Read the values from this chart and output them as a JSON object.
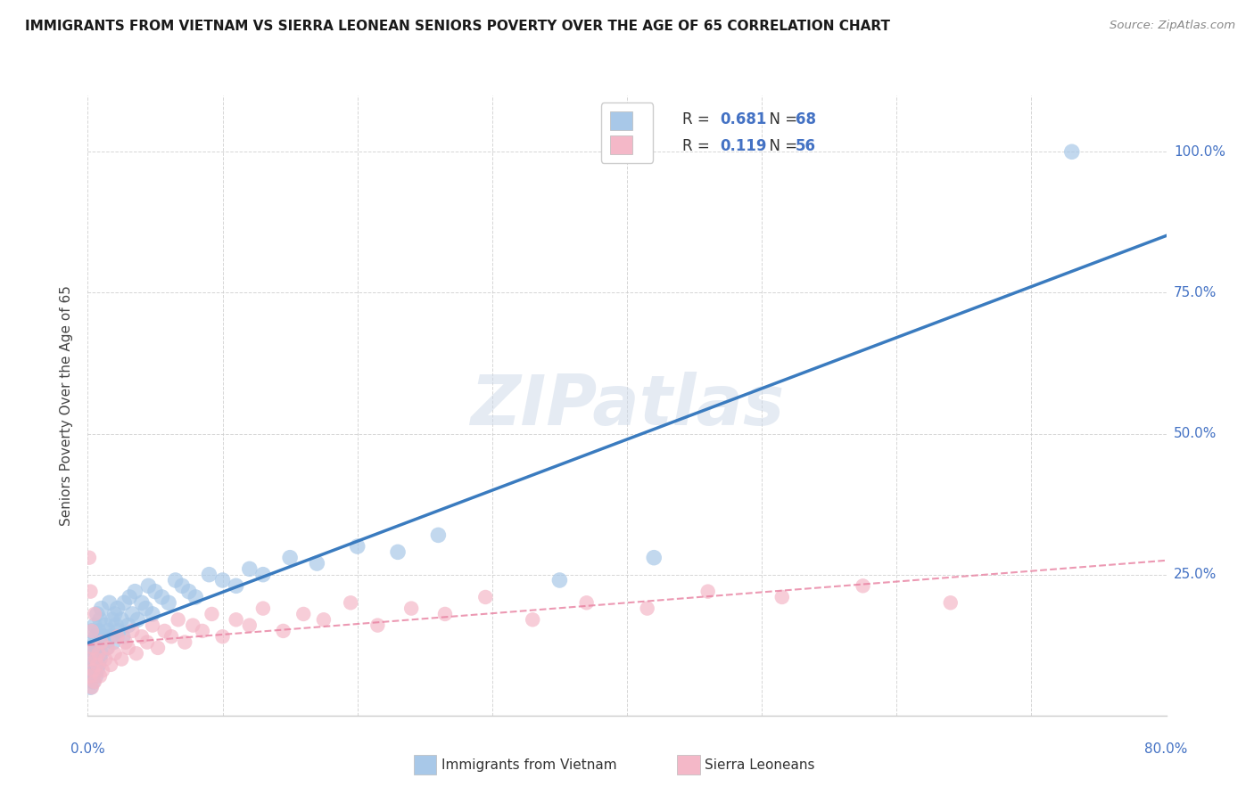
{
  "title": "IMMIGRANTS FROM VIETNAM VS SIERRA LEONEAN SENIORS POVERTY OVER THE AGE OF 65 CORRELATION CHART",
  "source": "Source: ZipAtlas.com",
  "ylabel": "Seniors Poverty Over the Age of 65",
  "watermark": "ZIPatlas",
  "vietnam_R": "0.681",
  "vietnam_N": "68",
  "sierra_R": "0.119",
  "sierra_N": "56",
  "vietnam_color": "#a8c8e8",
  "sierra_color": "#f4b8c8",
  "vietnam_line_color": "#3a7bbf",
  "sierra_line_color": "#e880a0",
  "label_color": "#4472c4",
  "background_color": "#ffffff",
  "grid_color": "#cccccc",
  "xlim": [
    0.0,
    0.8
  ],
  "ylim": [
    0.0,
    1.1
  ],
  "vietnam_scatter_x": [
    0.001,
    0.002,
    0.002,
    0.003,
    0.003,
    0.003,
    0.004,
    0.004,
    0.004,
    0.005,
    0.005,
    0.005,
    0.006,
    0.006,
    0.007,
    0.007,
    0.007,
    0.008,
    0.008,
    0.009,
    0.009,
    0.01,
    0.01,
    0.011,
    0.012,
    0.013,
    0.014,
    0.015,
    0.016,
    0.017,
    0.018,
    0.019,
    0.02,
    0.021,
    0.022,
    0.023,
    0.025,
    0.026,
    0.027,
    0.03,
    0.031,
    0.033,
    0.035,
    0.037,
    0.04,
    0.043,
    0.045,
    0.048,
    0.05,
    0.055,
    0.06,
    0.065,
    0.07,
    0.075,
    0.08,
    0.09,
    0.1,
    0.11,
    0.12,
    0.13,
    0.15,
    0.17,
    0.2,
    0.23,
    0.26,
    0.35,
    0.42,
    0.73
  ],
  "vietnam_scatter_y": [
    0.08,
    0.05,
    0.12,
    0.07,
    0.1,
    0.15,
    0.06,
    0.09,
    0.13,
    0.08,
    0.11,
    0.16,
    0.07,
    0.14,
    0.08,
    0.12,
    0.18,
    0.09,
    0.15,
    0.1,
    0.17,
    0.11,
    0.19,
    0.13,
    0.14,
    0.16,
    0.12,
    0.15,
    0.2,
    0.14,
    0.17,
    0.13,
    0.18,
    0.16,
    0.19,
    0.15,
    0.17,
    0.14,
    0.2,
    0.16,
    0.21,
    0.18,
    0.22,
    0.17,
    0.2,
    0.19,
    0.23,
    0.18,
    0.22,
    0.21,
    0.2,
    0.24,
    0.23,
    0.22,
    0.21,
    0.25,
    0.24,
    0.23,
    0.26,
    0.25,
    0.28,
    0.27,
    0.3,
    0.29,
    0.32,
    0.24,
    0.28,
    1.0
  ],
  "sierra_scatter_x": [
    0.001,
    0.001,
    0.002,
    0.002,
    0.003,
    0.003,
    0.004,
    0.004,
    0.005,
    0.005,
    0.006,
    0.007,
    0.008,
    0.009,
    0.01,
    0.011,
    0.013,
    0.015,
    0.017,
    0.02,
    0.022,
    0.025,
    0.028,
    0.03,
    0.033,
    0.036,
    0.04,
    0.044,
    0.048,
    0.052,
    0.057,
    0.062,
    0.067,
    0.072,
    0.078,
    0.085,
    0.092,
    0.1,
    0.11,
    0.12,
    0.13,
    0.145,
    0.16,
    0.175,
    0.195,
    0.215,
    0.24,
    0.265,
    0.295,
    0.33,
    0.37,
    0.415,
    0.46,
    0.515,
    0.575,
    0.64
  ],
  "sierra_scatter_y": [
    0.28,
    0.1,
    0.22,
    0.07,
    0.15,
    0.05,
    0.12,
    0.08,
    0.18,
    0.06,
    0.1,
    0.09,
    0.11,
    0.07,
    0.13,
    0.08,
    0.1,
    0.12,
    0.09,
    0.11,
    0.14,
    0.1,
    0.13,
    0.12,
    0.15,
    0.11,
    0.14,
    0.13,
    0.16,
    0.12,
    0.15,
    0.14,
    0.17,
    0.13,
    0.16,
    0.15,
    0.18,
    0.14,
    0.17,
    0.16,
    0.19,
    0.15,
    0.18,
    0.17,
    0.2,
    0.16,
    0.19,
    0.18,
    0.21,
    0.17,
    0.2,
    0.19,
    0.22,
    0.21,
    0.23,
    0.2
  ]
}
